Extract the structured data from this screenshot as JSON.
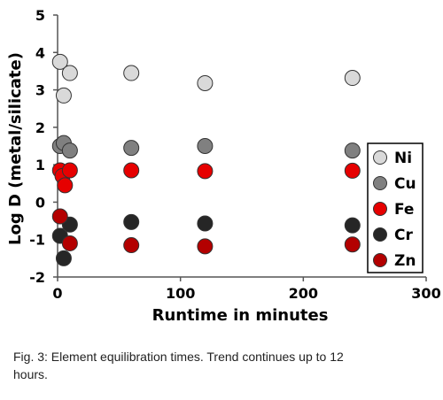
{
  "chart_data": {
    "type": "scatter",
    "xlabel": "Runtime in minutes",
    "ylabel": "Log D (metal/silicate)",
    "xlim": [
      0,
      300
    ],
    "ylim": [
      -2,
      5
    ],
    "xticks": [
      "0",
      "100",
      "200",
      "300"
    ],
    "yticks": [
      "-2",
      "-1",
      "0",
      "1",
      "2",
      "3",
      "4",
      "5"
    ],
    "legend_position": "right",
    "series": [
      {
        "name": "Ni",
        "color": "#d9d9d9",
        "points": [
          [
            2,
            3.75
          ],
          [
            5,
            2.85
          ],
          [
            10,
            3.45
          ],
          [
            60,
            3.45
          ],
          [
            120,
            3.18
          ],
          [
            240,
            3.32
          ]
        ]
      },
      {
        "name": "Cu",
        "color": "#808080",
        "points": [
          [
            2,
            1.5
          ],
          [
            5,
            1.58
          ],
          [
            10,
            1.38
          ],
          [
            60,
            1.45
          ],
          [
            120,
            1.5
          ],
          [
            240,
            1.38
          ]
        ]
      },
      {
        "name": "Fe",
        "color": "#e60000",
        "points": [
          [
            2,
            0.85
          ],
          [
            4,
            0.7
          ],
          [
            6,
            0.45
          ],
          [
            10,
            0.85
          ],
          [
            60,
            0.85
          ],
          [
            120,
            0.83
          ],
          [
            240,
            0.84
          ]
        ]
      },
      {
        "name": "Cr",
        "color": "#262626",
        "points": [
          [
            2,
            -0.9
          ],
          [
            5,
            -1.5
          ],
          [
            10,
            -0.6
          ],
          [
            60,
            -0.53
          ],
          [
            120,
            -0.57
          ],
          [
            240,
            -0.62
          ]
        ]
      },
      {
        "name": "Zn",
        "color": "#b30000",
        "points": [
          [
            2,
            -0.38
          ],
          [
            10,
            -1.1
          ],
          [
            60,
            -1.15
          ],
          [
            120,
            -1.18
          ],
          [
            240,
            -1.13
          ]
        ]
      }
    ]
  },
  "caption": "Fig. 3: Element equilibration times. Trend continues up to 12 hours."
}
